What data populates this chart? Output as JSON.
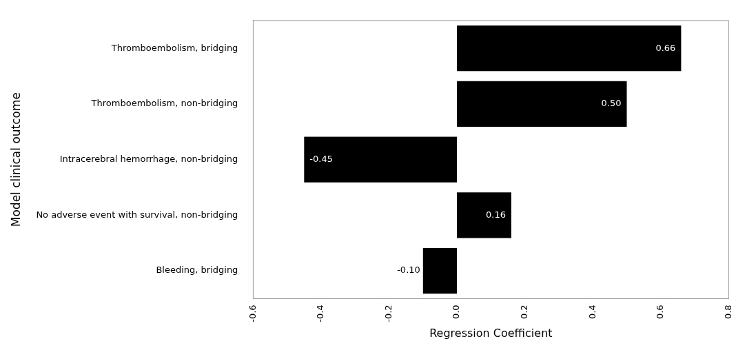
{
  "chart_data": {
    "type": "bar",
    "orientation": "horizontal",
    "xlabel": "Regression Coefficient",
    "ylabel": "Model clinical outcome",
    "categories": [
      "Thromboembolism, bridging",
      "Thromboembolism, non-bridging",
      "Intracerebral hemorrhage, non-bridging",
      "No adverse event with survival, non-bridging",
      "Bleeding, bridging"
    ],
    "values": [
      0.66,
      0.5,
      -0.45,
      0.16,
      -0.1
    ],
    "value_labels": [
      "0.66",
      "0.50",
      "-0.45",
      "0.16",
      "-0.10"
    ],
    "color": "#000000",
    "xlim": [
      -0.6,
      0.8
    ],
    "xticks": [
      -0.6,
      -0.4,
      -0.2,
      {
        "value": 0,
        "label": "0.0"
      },
      0.2,
      0.4,
      0.6,
      0.8
    ],
    "grid": false,
    "legend": false
  }
}
